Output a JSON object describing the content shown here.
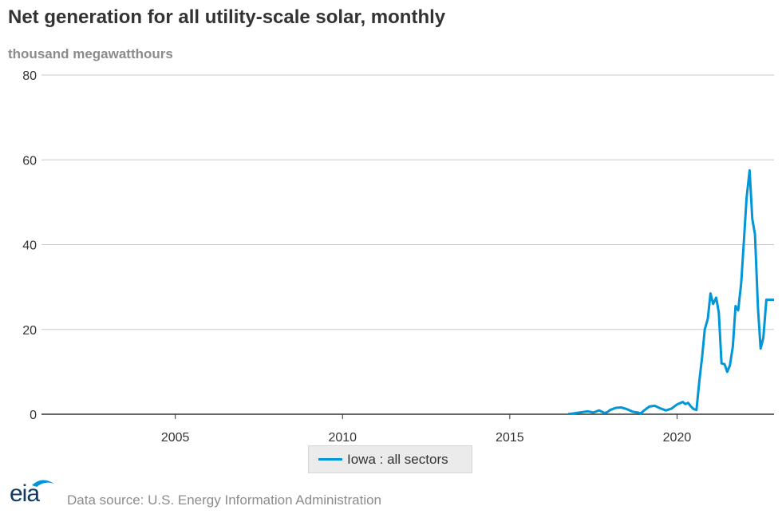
{
  "header": {
    "title": "Net generation for all utility-scale solar, monthly",
    "units": "thousand megawatthours"
  },
  "legend": {
    "label": "Iowa : all sectors"
  },
  "footer": {
    "logo_text": "eia",
    "source": "Data source: U.S. Energy Information Administration"
  },
  "colors": {
    "series": "#0096d7",
    "grid": "#c8c8c8",
    "axis": "#333333"
  },
  "chart_data": {
    "type": "line",
    "title": "Net generation for all utility-scale solar, monthly",
    "ylabel": "thousand megawatthours",
    "xlabel": "",
    "xlim": [
      2001.0,
      2022.9
    ],
    "ylim": [
      0,
      80
    ],
    "x_ticks": [
      2005,
      2010,
      2015,
      2020
    ],
    "y_ticks": [
      0,
      20,
      40,
      60,
      80
    ],
    "grid": true,
    "legend_position": "bottom-center",
    "series": [
      {
        "name": "Iowa : all sectors",
        "x": [
          2016.75,
          2016.83,
          2017.0,
          2017.17,
          2017.33,
          2017.5,
          2017.67,
          2017.83,
          2017.92,
          2018.0,
          2018.17,
          2018.33,
          2018.5,
          2018.67,
          2018.83,
          2018.92,
          2019.0,
          2019.17,
          2019.33,
          2019.5,
          2019.67,
          2019.83,
          2020.0,
          2020.08,
          2020.17,
          2020.25,
          2020.33,
          2020.42,
          2020.5,
          2020.58,
          2020.67,
          2020.75,
          2020.83,
          2020.92,
          2021.0,
          2021.08,
          2021.17,
          2021.25,
          2021.33,
          2021.42,
          2021.5,
          2021.58,
          2021.67,
          2021.75,
          2021.83,
          2021.92,
          2022.0,
          2022.08,
          2022.17,
          2022.25,
          2022.33,
          2022.42,
          2022.5,
          2022.58,
          2022.67,
          2022.75,
          2022.83,
          2022.9
        ],
        "values": [
          0.1,
          0.1,
          0.3,
          0.5,
          0.7,
          0.4,
          0.9,
          0.3,
          0.5,
          1.0,
          1.5,
          1.6,
          1.2,
          0.6,
          0.4,
          0.2,
          0.8,
          1.8,
          2.0,
          1.4,
          0.9,
          1.3,
          2.3,
          2.6,
          2.9,
          2.4,
          2.7,
          1.8,
          1.2,
          1.0,
          8.0,
          13.5,
          20.0,
          22.5,
          28.5,
          26.0,
          27.5,
          24.0,
          12.0,
          11.8,
          10.0,
          11.5,
          16.0,
          25.5,
          24.5,
          31.0,
          41.0,
          51.0,
          57.5,
          46.0,
          42.5,
          25.0,
          15.5,
          18.0,
          27.0,
          27.0,
          27.0,
          27.0
        ]
      }
    ]
  }
}
